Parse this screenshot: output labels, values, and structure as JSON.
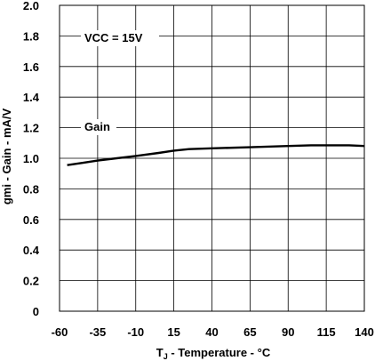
{
  "chart_data": {
    "type": "line",
    "title": "",
    "xlabel_main": "T",
    "xlabel_sub": "J",
    "xlabel_rest": " - Temperature - °C",
    "ylabel": "gmi - Gain - mA/V",
    "xlim": [
      -60,
      140
    ],
    "ylim": [
      0,
      2.0
    ],
    "x_ticks": [
      -60,
      -35,
      -10,
      15,
      40,
      65,
      90,
      115,
      140
    ],
    "x_tick_labels": [
      "-60",
      "-35",
      "-10",
      "15",
      "40",
      "65",
      "90",
      "115",
      "140"
    ],
    "y_ticks": [
      0,
      0.2,
      0.4,
      0.6,
      0.8,
      1.0,
      1.2,
      1.4,
      1.6,
      1.8,
      2.0
    ],
    "y_tick_labels": [
      "0",
      "0.2",
      "0.4",
      "0.6",
      "0.8",
      "1.0",
      "1.2",
      "1.4",
      "1.6",
      "1.8",
      "2.0"
    ],
    "grid": true,
    "legend": "none",
    "annotations": {
      "condition": "VCC = 15V",
      "series_label": "Gain"
    },
    "series": [
      {
        "name": "Gain",
        "x": [
          -55,
          -45,
          -35,
          -25,
          -10,
          5,
          15,
          25,
          40,
          65,
          90,
          105,
          115,
          130,
          140
        ],
        "y": [
          0.955,
          0.97,
          0.985,
          0.997,
          1.015,
          1.035,
          1.05,
          1.06,
          1.065,
          1.072,
          1.08,
          1.085,
          1.085,
          1.085,
          1.08
        ]
      }
    ]
  }
}
